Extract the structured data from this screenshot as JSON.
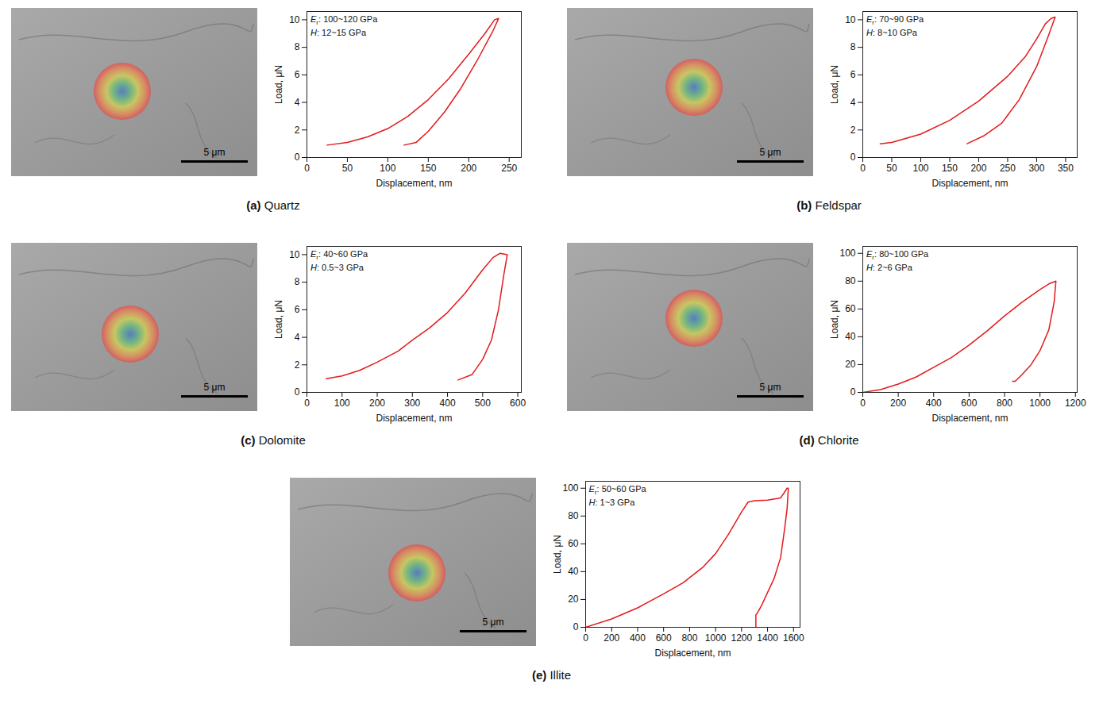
{
  "chart_data": [
    {
      "type": "line",
      "panel": "(a)",
      "title": "Quartz",
      "x_label": "Displacement, nm",
      "y_label": "Load, μN",
      "annotations": [
        {
          "symbol": "E",
          "subscript": "r",
          "text": ": 100~120 GPa"
        },
        {
          "symbol": "H",
          "text": ": 12~15 GPa"
        }
      ],
      "image": {
        "scale_bar": "5 μm"
      },
      "color": "#e31a1c",
      "x": [
        25,
        50,
        75,
        100,
        125,
        150,
        175,
        200,
        220,
        232,
        237,
        230,
        210,
        190,
        170,
        150,
        135,
        120
      ],
      "values": [
        0.9,
        1.1,
        1.5,
        2.1,
        3.0,
        4.2,
        5.7,
        7.5,
        9.0,
        10.0,
        10.1,
        9.2,
        7.0,
        5.0,
        3.3,
        1.9,
        1.1,
        0.9
      ],
      "xlim": [
        0,
        265
      ],
      "ylim": [
        0,
        10.6
      ],
      "xticks": [
        0,
        50,
        100,
        150,
        200,
        250
      ],
      "yticks": [
        0,
        2,
        4,
        6,
        8,
        10
      ]
    },
    {
      "type": "line",
      "panel": "(b)",
      "title": "Feldspar",
      "x_label": "Displacement, nm",
      "y_label": "Load, μN",
      "annotations": [
        {
          "symbol": "E",
          "subscript": "r",
          "text": ": 70~90 GPa"
        },
        {
          "symbol": "H",
          "text": ": 8~10 GPa"
        }
      ],
      "image": {
        "scale_bar": "5 μm"
      },
      "color": "#e31a1c",
      "x": [
        30,
        50,
        100,
        150,
        200,
        250,
        280,
        300,
        315,
        325,
        332,
        320,
        300,
        270,
        240,
        210,
        180
      ],
      "values": [
        1.0,
        1.1,
        1.7,
        2.7,
        4.1,
        5.9,
        7.3,
        8.6,
        9.7,
        10.1,
        10.2,
        8.8,
        6.6,
        4.2,
        2.5,
        1.6,
        1.0
      ],
      "xlim": [
        0,
        370
      ],
      "ylim": [
        0,
        10.6
      ],
      "xticks": [
        0,
        50,
        100,
        150,
        200,
        250,
        300,
        350
      ],
      "yticks": [
        0,
        2,
        4,
        6,
        8,
        10
      ]
    },
    {
      "type": "line",
      "panel": "(c)",
      "title": "Dolomite",
      "x_label": "Displacement, nm",
      "y_label": "Load, μN",
      "annotations": [
        {
          "symbol": "E",
          "subscript": "r",
          "text": ": 40~60 GPa"
        },
        {
          "symbol": "H",
          "text": ": 0.5~3 GPa"
        }
      ],
      "image": {
        "scale_bar": "5 μm"
      },
      "color": "#e31a1c",
      "x": [
        55,
        100,
        150,
        200,
        260,
        300,
        350,
        400,
        450,
        500,
        530,
        550,
        570,
        560,
        545,
        525,
        500,
        470,
        430
      ],
      "values": [
        1.0,
        1.2,
        1.6,
        2.2,
        3.0,
        3.8,
        4.7,
        5.8,
        7.2,
        8.9,
        9.8,
        10.1,
        10.0,
        8.5,
        6.0,
        3.8,
        2.4,
        1.3,
        0.9
      ],
      "xlim": [
        0,
        610
      ],
      "ylim": [
        0,
        10.6
      ],
      "xticks": [
        0,
        100,
        200,
        300,
        400,
        500,
        600
      ],
      "yticks": [
        0,
        2,
        4,
        6,
        8,
        10
      ]
    },
    {
      "type": "line",
      "panel": "(d)",
      "title": "Chlorite",
      "x_label": "Displacement, nm",
      "y_label": "Load, μN",
      "annotations": [
        {
          "symbol": "E",
          "subscript": "r",
          "text": ": 80~100 GPa"
        },
        {
          "symbol": "H",
          "text": ": 2~6 GPa"
        }
      ],
      "image": {
        "scale_bar": "5 μm"
      },
      "color": "#e31a1c",
      "x": [
        0,
        100,
        200,
        300,
        400,
        500,
        600,
        700,
        800,
        900,
        1000,
        1050,
        1090,
        1080,
        1050,
        1000,
        950,
        900,
        860,
        845
      ],
      "values": [
        0,
        2,
        6,
        11,
        18,
        25,
        34,
        44,
        55,
        65,
        74,
        78,
        80,
        65,
        45,
        30,
        20,
        13,
        8,
        8
      ],
      "xlim": [
        0,
        1210
      ],
      "ylim": [
        0,
        105
      ],
      "xticks": [
        0,
        200,
        400,
        600,
        800,
        1000,
        1200
      ],
      "yticks": [
        0,
        20,
        40,
        60,
        80,
        100
      ]
    },
    {
      "type": "line",
      "panel": "(e)",
      "title": "Illite",
      "x_label": "Displacement, nm",
      "y_label": "Load, μN",
      "annotations": [
        {
          "symbol": "E",
          "subscript": "r",
          "text": ": 50~60 GPa"
        },
        {
          "symbol": "H",
          "text": ": 1~3 GPa"
        }
      ],
      "image": {
        "scale_bar": "5 μm"
      },
      "color": "#e31a1c",
      "x": [
        0,
        200,
        400,
        600,
        750,
        900,
        1000,
        1100,
        1200,
        1250,
        1300,
        1400,
        1500,
        1530,
        1550,
        1560,
        1550,
        1530,
        1500,
        1450,
        1400,
        1350,
        1320,
        1310,
        1310
      ],
      "values": [
        0,
        6,
        14,
        24,
        32,
        43,
        53,
        67,
        83,
        90,
        91,
        91.5,
        93,
        97,
        100,
        100,
        85,
        70,
        50,
        35,
        25,
        15,
        10,
        9,
        0
      ],
      "xlim": [
        0,
        1650
      ],
      "ylim": [
        0,
        105
      ],
      "xticks": [
        0,
        200,
        400,
        600,
        800,
        1000,
        1200,
        1400,
        1600
      ],
      "yticks": [
        0,
        20,
        40,
        60,
        80,
        100
      ]
    }
  ]
}
